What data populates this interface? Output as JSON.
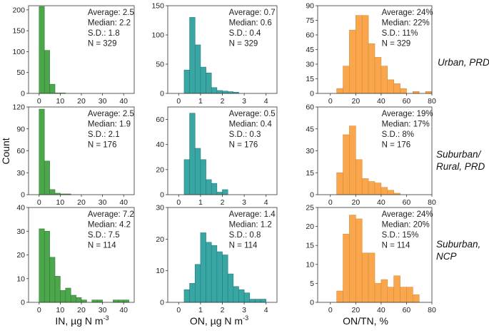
{
  "figure": {
    "ylabel": "Count",
    "xlabels": [
      "IN, µg N m",
      "ON, µg N m",
      "ON/TN, %"
    ],
    "xlabel_superscripts": [
      "-3",
      "-3",
      ""
    ],
    "row_labels": [
      [
        "Urban, PRD"
      ],
      [
        "Suburban/",
        "Rural, PRD"
      ],
      [
        "Suburban,",
        "NCP"
      ]
    ]
  },
  "colors": {
    "IN": "#4ca64b",
    "ON": "#3aa6a4",
    "ONTN": "#faa64c",
    "edge_IN": "#2f7d31",
    "edge_ON": "#217d7b",
    "edge_ONTN": "#d98a3a"
  },
  "chart_data": [
    {
      "type": "bar",
      "row": 0,
      "col": 0,
      "variable": "IN",
      "xlim": [
        -5,
        45
      ],
      "xticks": [
        0,
        10,
        20,
        30,
        40
      ],
      "ylim": [
        0,
        210
      ],
      "yticks": [
        0,
        50,
        100,
        150,
        200
      ],
      "bin_start": 0,
      "bin_width": 2.5,
      "values": [
        208,
        103,
        22,
        1,
        1,
        0,
        0,
        0,
        0,
        0,
        0,
        0,
        0,
        0,
        0,
        0,
        0
      ],
      "stats": {
        "average": "Average: 2.5",
        "median": "Median: 2.2",
        "sd": "S.D.: 1.8",
        "n": "N = 329"
      }
    },
    {
      "type": "bar",
      "row": 0,
      "col": 1,
      "variable": "ON",
      "xlim": [
        -0.5,
        4.5
      ],
      "xticks": [
        0,
        1,
        2,
        3,
        4
      ],
      "ylim": [
        0,
        150
      ],
      "yticks": [
        0,
        50,
        100,
        150
      ],
      "bin_start": 0,
      "bin_width": 0.25,
      "values": [
        0,
        40,
        130,
        83,
        45,
        35,
        10,
        5,
        4,
        3,
        2,
        0,
        0,
        0,
        0,
        0
      ],
      "stats": {
        "average": "Average: 0.7",
        "median": "Median: 0.6",
        "sd": "S.D.: 0.4",
        "n": "N = 329"
      }
    },
    {
      "type": "bar",
      "row": 0,
      "col": 2,
      "variable": "ONTN",
      "xlim": [
        -10,
        80
      ],
      "xticks": [
        0,
        20,
        40,
        60,
        80
      ],
      "ylim": [
        0,
        90
      ],
      "yticks": [
        0,
        15,
        30,
        45,
        60,
        75,
        90
      ],
      "bin_start": 0,
      "bin_width": 5,
      "values": [
        0,
        5,
        28,
        65,
        80,
        80,
        51,
        37,
        28,
        14,
        10,
        5,
        0,
        2,
        0,
        2
      ],
      "stats": {
        "average": "Average: 24%",
        "median": "Median: 22%",
        "sd": "S.D.: 11%",
        "n": "N = 329"
      }
    },
    {
      "type": "bar",
      "row": 1,
      "col": 0,
      "variable": "IN",
      "xlim": [
        -5,
        45
      ],
      "xticks": [
        0,
        10,
        20,
        30,
        40
      ],
      "ylim": [
        0,
        120
      ],
      "yticks": [
        0,
        30,
        60,
        90,
        120
      ],
      "bin_start": 0,
      "bin_width": 2.5,
      "values": [
        117,
        46,
        7,
        2,
        1,
        1,
        0,
        0,
        0,
        0,
        0,
        0,
        0,
        0,
        0,
        0,
        0
      ],
      "stats": {
        "average": "Average: 2.5",
        "median": "Median: 1.9",
        "sd": "S.D.: 2.1",
        "n": "N = 176"
      }
    },
    {
      "type": "bar",
      "row": 1,
      "col": 1,
      "variable": "ON",
      "xlim": [
        -0.5,
        4.5
      ],
      "xticks": [
        0,
        1,
        2,
        3,
        4
      ],
      "ylim": [
        0,
        70
      ],
      "yticks": [
        0,
        20,
        40,
        60
      ],
      "bin_start": 0,
      "bin_width": 0.25,
      "values": [
        0,
        28,
        65,
        37,
        28,
        12,
        9,
        2,
        4,
        0,
        0,
        0,
        0,
        0,
        0,
        0
      ],
      "stats": {
        "average": "Average: 0.5",
        "median": "Median: 0.4",
        "sd": "S.D.: 0.3",
        "n": "N = 176"
      }
    },
    {
      "type": "bar",
      "row": 1,
      "col": 2,
      "variable": "ONTN",
      "xlim": [
        -10,
        80
      ],
      "xticks": [
        0,
        20,
        40,
        60,
        80
      ],
      "ylim": [
        0,
        60
      ],
      "yticks": [
        0,
        15,
        30,
        45,
        60
      ],
      "bin_start": 0,
      "bin_width": 5,
      "values": [
        0,
        15,
        41,
        47,
        24,
        11,
        9,
        8,
        5,
        3,
        1,
        0,
        0,
        0,
        0,
        0
      ],
      "stats": {
        "average": "Average: 19%",
        "median": "Median: 17%",
        "sd": "S.D.: 8%",
        "n": "N = 176"
      }
    },
    {
      "type": "bar",
      "row": 2,
      "col": 0,
      "variable": "IN",
      "xlim": [
        -5,
        45
      ],
      "xticks": [
        0,
        10,
        20,
        30,
        40
      ],
      "ylim": [
        0,
        40
      ],
      "yticks": [
        0,
        10,
        20,
        30,
        40
      ],
      "bin_start": 0,
      "bin_width": 2.5,
      "values": [
        31,
        30,
        19,
        11,
        5,
        6,
        3,
        2,
        1,
        0,
        1,
        1,
        0,
        0,
        1,
        1,
        1
      ],
      "stats": {
        "average": "Average: 7.2",
        "median": "Median: 4.2",
        "sd": "S.D.: 7.5",
        "n": "N = 114"
      }
    },
    {
      "type": "bar",
      "row": 2,
      "col": 1,
      "variable": "ON",
      "xlim": [
        -0.5,
        4.5
      ],
      "xticks": [
        0,
        1,
        2,
        3,
        4
      ],
      "ylim": [
        0,
        30
      ],
      "yticks": [
        0,
        10,
        20,
        30
      ],
      "bin_start": 0,
      "bin_width": 0.25,
      "values": [
        0,
        4,
        6,
        12,
        22,
        19,
        18,
        16,
        15,
        9,
        5,
        4,
        3,
        1,
        1,
        1
      ],
      "stats": {
        "average": "Average: 1.4",
        "median": "Median: 1.2",
        "sd": "S.D.: 0.8",
        "n": "N = 114"
      }
    },
    {
      "type": "bar",
      "row": 2,
      "col": 2,
      "variable": "ONTN",
      "xlim": [
        -10,
        80
      ],
      "xticks": [
        0,
        20,
        40,
        60,
        80
      ],
      "ylim": [
        0,
        25
      ],
      "yticks": [
        0,
        5,
        10,
        15,
        20,
        25
      ],
      "bin_start": 0,
      "bin_width": 5,
      "values": [
        0,
        3,
        18,
        23,
        22,
        13,
        13,
        5,
        6,
        4,
        7,
        4,
        4,
        2,
        0,
        0
      ],
      "stats": {
        "average": "Average: 24%",
        "median": "Median: 20%",
        "sd": "S.D.: 15%",
        "n": "N = 114"
      }
    }
  ]
}
